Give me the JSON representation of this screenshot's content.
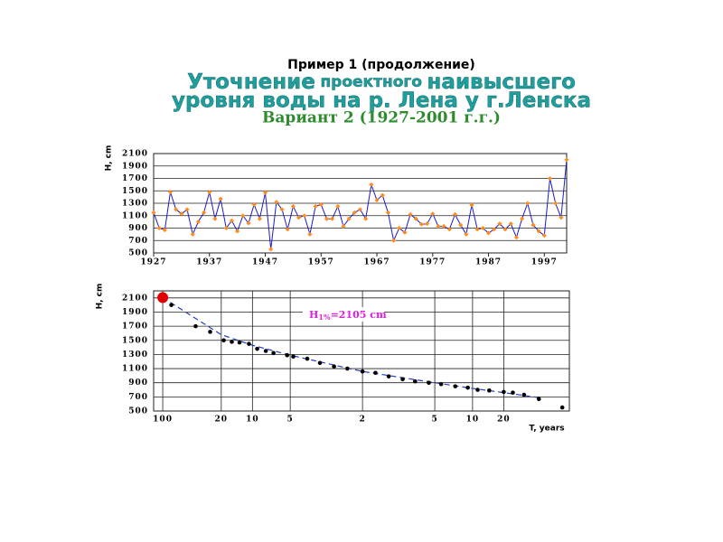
{
  "header": {
    "subtitle": "Пример 1 (продолжение)",
    "title_line1": [
      "Уточнение",
      "проектного",
      "наивысшего"
    ],
    "title_line2": "уровня воды на р. Лена у г.Ленска",
    "variant": "Вариант 2 (1927-2001 г.г.)"
  },
  "chart_data": [
    {
      "type": "line",
      "y_label": "H, cm",
      "grid": "y",
      "x": [
        1927,
        1928,
        1929,
        1930,
        1931,
        1932,
        1933,
        1934,
        1935,
        1936,
        1937,
        1938,
        1939,
        1940,
        1941,
        1942,
        1943,
        1944,
        1945,
        1946,
        1947,
        1948,
        1949,
        1950,
        1951,
        1952,
        1953,
        1954,
        1955,
        1956,
        1957,
        1958,
        1959,
        1960,
        1961,
        1962,
        1963,
        1964,
        1965,
        1966,
        1967,
        1968,
        1969,
        1970,
        1971,
        1972,
        1973,
        1974,
        1975,
        1976,
        1977,
        1978,
        1979,
        1980,
        1981,
        1982,
        1983,
        1984,
        1985,
        1986,
        1987,
        1988,
        1989,
        1990,
        1991,
        1992,
        1993,
        1994,
        1995,
        1996,
        1997,
        1998,
        1999,
        2000,
        2001
      ],
      "series": [
        {
          "color": "#1a1acc",
          "marker_color": "#ff8c1a",
          "mode": "line+markers",
          "values": [
            1150,
            900,
            870,
            1480,
            1200,
            1130,
            1200,
            800,
            1000,
            1150,
            1480,
            1050,
            1370,
            900,
            1020,
            850,
            1100,
            980,
            1280,
            1050,
            1470,
            560,
            1320,
            1200,
            880,
            1250,
            1070,
            1100,
            800,
            1250,
            1280,
            1050,
            1050,
            1250,
            930,
            1050,
            1150,
            1200,
            1050,
            1600,
            1350,
            1430,
            1150,
            700,
            900,
            830,
            1120,
            1050,
            960,
            970,
            1130,
            930,
            930,
            880,
            1120,
            950,
            800,
            1270,
            880,
            900,
            820,
            880,
            970,
            880,
            970,
            750,
            1050,
            1300,
            950,
            850,
            780,
            1700,
            1300,
            1070,
            2000
          ]
        }
      ],
      "xlim": [
        1927,
        2001
      ],
      "xticks": [
        1927,
        1937,
        1947,
        1957,
        1967,
        1977,
        1987,
        1997
      ],
      "ylim": [
        500,
        2100
      ],
      "yticks": [
        500,
        700,
        900,
        1100,
        1300,
        1500,
        1700,
        1900,
        2100
      ]
    },
    {
      "type": "scatter",
      "x_scale": "probability",
      "y_label": "H, cm",
      "x_label": "T, years",
      "grid": "both",
      "series": [
        {
          "color": "#1f3fbf",
          "mode": "dashed-line",
          "x": [
            1,
            5,
            10,
            20,
            50,
            80,
            90,
            95,
            98
          ],
          "values": [
            2105,
            1580,
            1430,
            1290,
            1060,
            900,
            820,
            760,
            690
          ]
        },
        {
          "color": "#000000",
          "mode": "markers",
          "x": [
            1.3,
            2.6,
            3.8,
            5.3,
            6.4,
            7.6,
            9.3,
            11,
            13,
            15,
            19,
            21,
            26,
            31,
            37,
            43,
            50,
            56,
            62,
            68,
            73,
            78,
            82,
            86,
            89,
            91,
            93,
            95,
            96,
            97,
            98,
            99
          ],
          "values": [
            2000,
            1700,
            1620,
            1500,
            1480,
            1470,
            1450,
            1380,
            1350,
            1320,
            1290,
            1270,
            1240,
            1180,
            1130,
            1100,
            1060,
            1040,
            990,
            950,
            920,
            900,
            880,
            850,
            830,
            800,
            790,
            770,
            760,
            730,
            670,
            550
          ]
        },
        {
          "color": "#e00000",
          "mode": "big-marker",
          "x": [
            1
          ],
          "values": [
            2105
          ]
        }
      ],
      "annotation": {
        "text": "H",
        "sub": "1%",
        "rest": "=2105 cm"
      },
      "xlim": [
        0.75,
        99.2
      ],
      "xticks": [
        {
          "value": 1,
          "label": "100"
        },
        {
          "value": 5,
          "label": "20"
        },
        {
          "value": 10,
          "label": "10"
        },
        {
          "value": 20,
          "label": "5"
        },
        {
          "value": 50,
          "label": "2"
        },
        {
          "value": 80,
          "label": "5"
        },
        {
          "value": 90,
          "label": "10"
        },
        {
          "value": 95,
          "label": "20"
        }
      ],
      "ylim": [
        500,
        2200
      ],
      "yticks": [
        500,
        700,
        900,
        1100,
        1300,
        1500,
        1700,
        1900,
        2100
      ]
    }
  ]
}
